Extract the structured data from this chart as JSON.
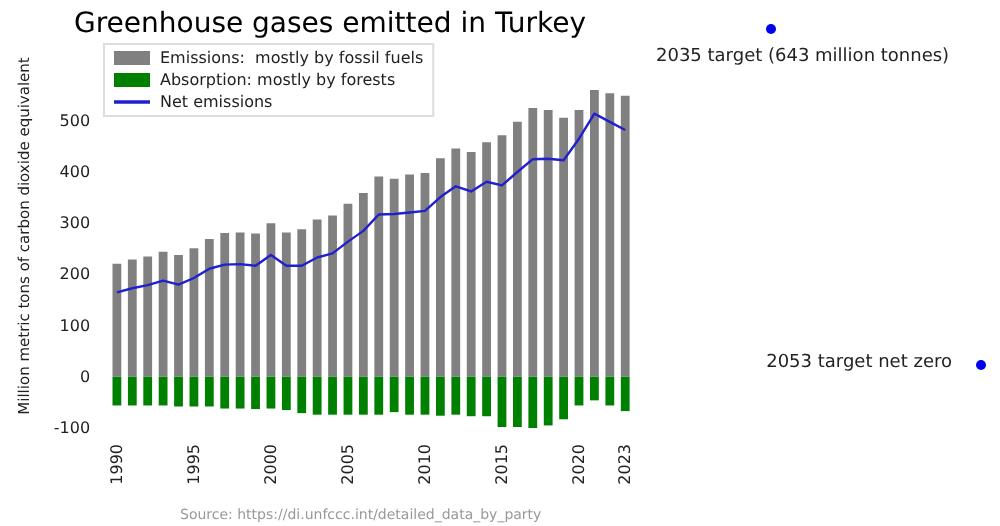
{
  "chart_data": {
    "type": "bar",
    "title": "Greenhouse gases emitted in Turkey",
    "ylabel": "Million metric tons of carbon dioxide equivalent",
    "stacked": true,
    "x": [
      1990,
      1991,
      1992,
      1993,
      1994,
      1995,
      1996,
      1997,
      1998,
      1999,
      2000,
      2001,
      2002,
      2003,
      2004,
      2005,
      2006,
      2007,
      2008,
      2009,
      2010,
      2011,
      2012,
      2013,
      2014,
      2015,
      2016,
      2017,
      2018,
      2019,
      2020,
      2021,
      2022,
      2023
    ],
    "series": [
      {
        "name": "Emissions:  mostly by fossil fuels",
        "color": "#808080",
        "values": [
          221,
          229,
          235,
          244,
          238,
          251,
          269,
          281,
          282,
          280,
          300,
          282,
          288,
          307,
          315,
          338,
          359,
          391,
          387,
          395,
          398,
          427,
          446,
          439,
          458,
          472,
          498,
          525,
          521,
          506,
          521,
          560,
          554,
          549
        ]
      },
      {
        "name": "Absorption: mostly by forests",
        "color": "#008000",
        "values": [
          -56,
          -56,
          -56,
          -56,
          -58,
          -58,
          -58,
          -62,
          -62,
          -63,
          -62,
          -65,
          -71,
          -74,
          -74,
          -74,
          -74,
          -74,
          -69,
          -74,
          -74,
          -76,
          -74,
          -77,
          -77,
          -98,
          -98,
          -100,
          -95,
          -83,
          -56,
          -46,
          -56,
          -67
        ]
      },
      {
        "name": "Net emissions",
        "type": "line",
        "color": "#2020d0",
        "marker": "none",
        "values": [
          165,
          173,
          179,
          188,
          180,
          193,
          211,
          219,
          220,
          217,
          238,
          217,
          217,
          233,
          241,
          264,
          285,
          317,
          318,
          321,
          324,
          351,
          372,
          362,
          381,
          374,
          400,
          425,
          426,
          423,
          465,
          514,
          498,
          482
        ]
      }
    ],
    "xlim": [
      1989.3,
      2023.7
    ],
    "xticks": [
      1990,
      1995,
      2000,
      2005,
      2010,
      2015,
      2020,
      2023
    ],
    "ylim": [
      -100,
      650
    ],
    "yticks": [
      -100,
      0,
      100,
      200,
      300,
      400,
      500
    ],
    "grid": false,
    "legend": "top left",
    "annotations": [
      "2035 target (643 million tonnes)",
      "2053 target net zero",
      "Source: https://di.unfccc.int/detailed_data_by_party"
    ]
  }
}
